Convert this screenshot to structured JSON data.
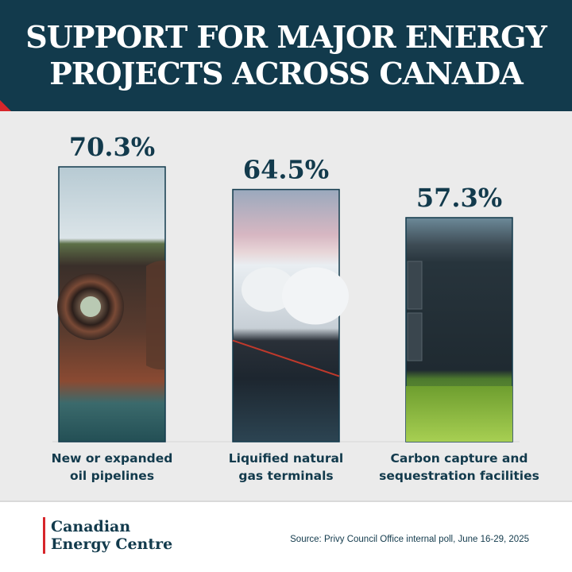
{
  "header": {
    "title_line1": "SUPPORT FOR MAJOR ENERGY",
    "title_line2": "PROJECTS ACROSS CANADA"
  },
  "chart_data": {
    "type": "bar",
    "title": "SUPPORT FOR MAJOR ENERGY PROJECTS ACROSS CANADA",
    "categories": [
      "New or expanded oil pipelines",
      "Liquified natural gas terminals",
      "Carbon capture and sequestration facilities"
    ],
    "category_lines": [
      [
        "New or expanded",
        "oil pipelines"
      ],
      [
        "Liquified natural",
        "gas terminals"
      ],
      [
        "Carbon capture and",
        "sequestration facilities"
      ]
    ],
    "values": [
      70.3,
      64.5,
      57.3
    ],
    "value_labels": [
      "70.3%",
      "64.5%",
      "57.3%"
    ],
    "unit": "%",
    "ylim": [
      0,
      100
    ],
    "grid": false,
    "legend": "none"
  },
  "footer": {
    "logo_line1": "Canadian",
    "logo_line2": "Energy Centre",
    "source": "Source: Privy Council Office internal poll, June 16-29, 2025"
  },
  "colors": {
    "header_bg": "#123a4c",
    "panel_bg": "#ebebeb",
    "text": "#123a4c",
    "accent": "#d7262b"
  }
}
